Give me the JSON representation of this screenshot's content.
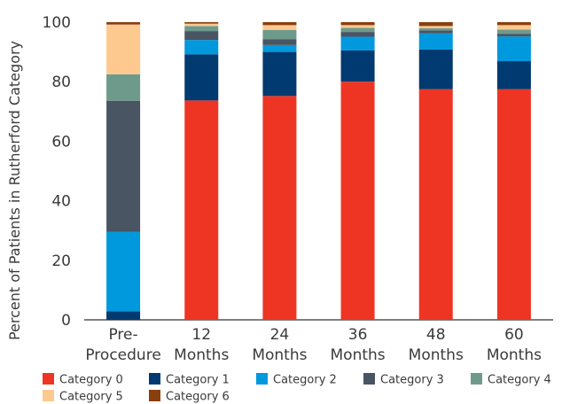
{
  "chart_data": {
    "type": "bar",
    "stacked": true,
    "title": "",
    "xlabel": "",
    "ylabel": "Percent of Patients in Rutherford Category",
    "ylim": [
      0,
      100
    ],
    "yticks": [
      0,
      20,
      40,
      60,
      80,
      100
    ],
    "grid": false,
    "legend_position": "bottom",
    "categories": [
      [
        "Pre-",
        "Procedure"
      ],
      [
        "12",
        "Months"
      ],
      [
        "24",
        "Months"
      ],
      [
        "36",
        "Months"
      ],
      [
        "48",
        "Months"
      ],
      [
        "60",
        "Months"
      ]
    ],
    "series": [
      {
        "name": "Category 0",
        "color": "#ee3524",
        "values": [
          0,
          73.7,
          75.2,
          80.0,
          77.5,
          77.5
        ]
      },
      {
        "name": "Category 1",
        "color": "#003a70",
        "values": [
          2.9,
          15.5,
          14.8,
          10.5,
          13.3,
          9.4
        ]
      },
      {
        "name": "Category 2",
        "color": "#0099dd",
        "values": [
          26.6,
          4.8,
          2.3,
          4.6,
          5.4,
          8.3
        ]
      },
      {
        "name": "Category 3",
        "color": "#4a5564",
        "values": [
          44.1,
          3.0,
          2.0,
          1.6,
          1.0,
          0.9
        ]
      },
      {
        "name": "Category 4",
        "color": "#6e9a8c",
        "values": [
          8.9,
          1.7,
          3.1,
          1.4,
          0.8,
          1.4
        ]
      },
      {
        "name": "Category 5",
        "color": "#fdc98f",
        "values": [
          16.7,
          0.8,
          1.6,
          0.9,
          0.7,
          1.5
        ]
      },
      {
        "name": "Category 6",
        "color": "#8a3f0f",
        "values": [
          0.8,
          0.5,
          1.0,
          1.0,
          1.3,
          1.0
        ]
      }
    ]
  }
}
